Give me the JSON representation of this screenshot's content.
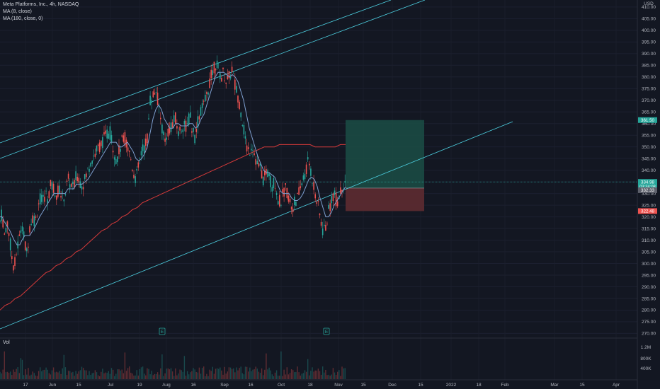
{
  "legend": {
    "symbol_line": "Meta Platforms, Inc., 4h, NASDAQ",
    "ma1": "MA (8, close)",
    "ma2": "MA (180, close, 0)"
  },
  "volume_pane": {
    "label": "Vol",
    "ticks": [
      "1.2M",
      "800K",
      "400K"
    ]
  },
  "price_axis": {
    "currency": "USD",
    "ticks": [
      "410.00",
      "405.00",
      "400.00",
      "395.00",
      "390.00",
      "385.00",
      "380.00",
      "375.00",
      "370.00",
      "365.00",
      "360.00",
      "355.00",
      "350.00",
      "345.00",
      "340.00",
      "335.00",
      "330.00",
      "325.00",
      "320.00",
      "315.00",
      "310.00",
      "305.00",
      "300.00",
      "295.00",
      "290.00",
      "285.00",
      "280.00",
      "275.00",
      "270.00"
    ]
  },
  "time_axis": {
    "ticks": [
      "17",
      "Jun",
      "15",
      "Jul",
      "19",
      "Aug",
      "16",
      "Sep",
      "16",
      "Oct",
      "18",
      "Nov",
      "15",
      "Dec",
      "15",
      "2022",
      "18",
      "Feb",
      "Mar",
      "15",
      "Apr"
    ]
  },
  "badges": {
    "target": "361.50",
    "last": "334.98",
    "countdown": "03:34:08",
    "entry": "332.33",
    "stop": "322.48"
  },
  "event_markers": [
    "E",
    "E"
  ],
  "colors": {
    "background": "#131722",
    "up": "#26a69a",
    "down": "#ef5350",
    "ma_fast": "#7e9fcf",
    "ma_slow": "#d63a3a",
    "trendline": "#4dd0e1",
    "target_zone": "#1b4a44",
    "stop_zone": "#5a2a30"
  },
  "chart_data": {
    "type": "candlestick",
    "symbol": "Meta Platforms, Inc.",
    "interval": "4h",
    "exchange": "NASDAQ",
    "ylim": [
      268,
      413
    ],
    "last_price": 334.98,
    "long_position": {
      "entry": 332.33,
      "target": 361.5,
      "stop": 322.48
    },
    "path_x": [
      0,
      3,
      6,
      10,
      14,
      17,
      20,
      24,
      28,
      31,
      35,
      38,
      42,
      46,
      50,
      53,
      56,
      60,
      64,
      68,
      72,
      76,
      80,
      84,
      88,
      92,
      96,
      100,
      104,
      108,
      112,
      116,
      120,
      124,
      128,
      132,
      136,
      140,
      144,
      148,
      152,
      156,
      160,
      164,
      168,
      172,
      176,
      180,
      184,
      188,
      192,
      196,
      200,
      204,
      208,
      212,
      216,
      220,
      224,
      228,
      232,
      236,
      240,
      244,
      248,
      252,
      256,
      260,
      264,
      268,
      272,
      276,
      280,
      284,
      288,
      292,
      296,
      300,
      304,
      308,
      312,
      316,
      320,
      324,
      328,
      332,
      336,
      340,
      344,
      348,
      352,
      356,
      360,
      364,
      368,
      372,
      376,
      380,
      384,
      388,
      392,
      396,
      400,
      404,
      408,
      412,
      416,
      420,
      424,
      428,
      432,
      436,
      440,
      444,
      448,
      452,
      456,
      460,
      464,
      468,
      472,
      476,
      480,
      484,
      488
    ],
    "path_price": [
      318,
      322,
      312,
      318,
      310,
      302,
      298,
      306,
      312,
      318,
      308,
      304,
      316,
      320,
      318,
      324,
      328,
      326,
      330,
      328,
      334,
      332,
      330,
      332,
      328,
      330,
      336,
      334,
      332,
      338,
      336,
      334,
      336,
      340,
      344,
      346,
      348,
      350,
      352,
      354,
      356,
      356,
      350,
      344,
      348,
      352,
      354,
      350,
      346,
      340,
      336,
      342,
      348,
      350,
      354,
      370,
      372,
      375,
      368,
      360,
      352,
      356,
      358,
      360,
      362,
      356,
      358,
      360,
      358,
      364,
      356,
      354,
      362,
      366,
      368,
      372,
      378,
      382,
      386,
      384,
      380,
      382,
      378,
      380,
      384,
      376,
      372,
      366,
      358,
      350,
      348,
      352,
      346,
      342,
      340,
      336,
      338,
      340,
      332,
      336,
      328,
      326,
      330,
      332,
      328,
      324,
      326,
      328,
      332,
      336,
      340,
      344,
      338,
      332,
      326,
      320,
      314,
      316,
      322,
      328,
      330,
      326,
      330,
      334,
      335
    ],
    "ma_fast": [
      320,
      320,
      318,
      316,
      314,
      312,
      310,
      308,
      308,
      310,
      312,
      312,
      312,
      314,
      316,
      318,
      320,
      322,
      324,
      326,
      328,
      330,
      330,
      330,
      330,
      330,
      332,
      332,
      332,
      334,
      334,
      334,
      335,
      336,
      338,
      340,
      342,
      344,
      346,
      348,
      350,
      352,
      352,
      352,
      350,
      350,
      351,
      352,
      350,
      348,
      345,
      344,
      345,
      347,
      350,
      356,
      362,
      366,
      368,
      366,
      362,
      360,
      358,
      358,
      360,
      360,
      359,
      359,
      359,
      360,
      360,
      358,
      359,
      362,
      364,
      368,
      372,
      376,
      380,
      382,
      382,
      382,
      381,
      380,
      381,
      380,
      378,
      374,
      370,
      364,
      358,
      354,
      350,
      346,
      343,
      340,
      339,
      339,
      338,
      337,
      334,
      331,
      330,
      330,
      330,
      328,
      327,
      327,
      328,
      330,
      333,
      336,
      337,
      336,
      333,
      328,
      324,
      320,
      320,
      322,
      325,
      327,
      329,
      331,
      333
    ],
    "ma_slow": [
      280,
      282,
      283,
      285,
      286,
      288,
      290,
      292,
      294,
      296,
      297,
      299,
      300,
      302,
      303,
      305,
      306,
      308,
      310,
      312,
      314,
      315,
      317,
      318,
      320,
      321,
      323,
      324,
      326,
      327,
      328,
      329,
      330,
      331,
      332,
      333,
      334,
      335,
      336,
      337,
      338,
      339,
      340,
      341,
      342,
      343,
      344,
      345,
      346,
      347,
      348,
      349,
      350,
      350,
      350,
      351,
      351,
      351,
      351,
      351,
      351,
      351,
      350,
      350,
      350,
      350,
      350,
      351,
      351
    ],
    "ma_slow_x_start": 0,
    "ma_slow_x_end": 488
  }
}
